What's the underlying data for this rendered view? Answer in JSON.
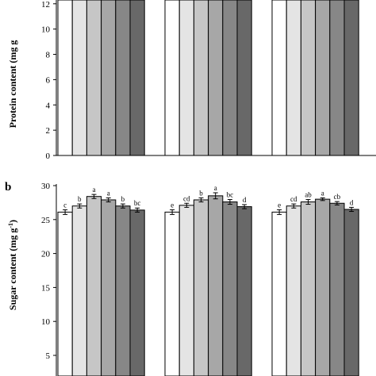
{
  "chart_data": [
    {
      "type": "bar",
      "panel_label": "",
      "ylabel": "Protein content (mg g",
      "ylim": [
        0,
        12
      ],
      "yticks": [
        0,
        2,
        4,
        6,
        8,
        10,
        12
      ],
      "groups": 3,
      "group_series": [
        {
          "values": [
            12.5,
            12.5,
            12.5,
            12.5,
            12.5,
            12.5
          ],
          "labels": [
            "",
            "",
            "",
            "",
            "",
            ""
          ]
        },
        {
          "values": [
            12.5,
            12.5,
            12.5,
            12.5,
            12.5,
            12.5
          ],
          "labels": [
            "",
            "",
            "",
            "",
            "",
            ""
          ]
        },
        {
          "values": [
            12.5,
            12.5,
            12.5,
            12.5,
            12.5,
            12.5
          ],
          "labels": [
            "",
            "",
            "",
            "",
            "",
            ""
          ]
        }
      ]
    },
    {
      "type": "bar",
      "panel_label": "b",
      "ylabel": "Sugar content (mg g",
      "ylabel_sup": "-1",
      "ylabel_end": ")",
      "ylim": [
        0,
        30
      ],
      "yticks": [
        5,
        10,
        15,
        20,
        25,
        30
      ],
      "groups": 3,
      "group_series": [
        {
          "values": [
            26.1,
            27.0,
            28.4,
            27.9,
            27.0,
            26.4
          ],
          "errors": [
            0.35,
            0.3,
            0.3,
            0.3,
            0.3,
            0.3
          ],
          "labels": [
            "c",
            "b",
            "a",
            "a",
            "b",
            "bc"
          ]
        },
        {
          "values": [
            26.1,
            27.1,
            27.9,
            28.5,
            27.6,
            26.9
          ],
          "errors": [
            0.35,
            0.3,
            0.3,
            0.45,
            0.35,
            0.3
          ],
          "labels": [
            "e",
            "cd",
            "b",
            "a",
            "bc",
            "d"
          ]
        },
        {
          "values": [
            26.1,
            27.0,
            27.6,
            28.0,
            27.4,
            26.5
          ],
          "errors": [
            0.35,
            0.3,
            0.35,
            0.2,
            0.25,
            0.3
          ],
          "labels": [
            "e",
            "cd",
            "ab",
            "a",
            "cb",
            "d"
          ]
        }
      ]
    }
  ],
  "colors": {
    "bar_fills": [
      "#ffffff",
      "#e4e4e4",
      "#c6c6c6",
      "#a7a7a7",
      "#878787",
      "#686868"
    ],
    "stroke": "#000000"
  }
}
